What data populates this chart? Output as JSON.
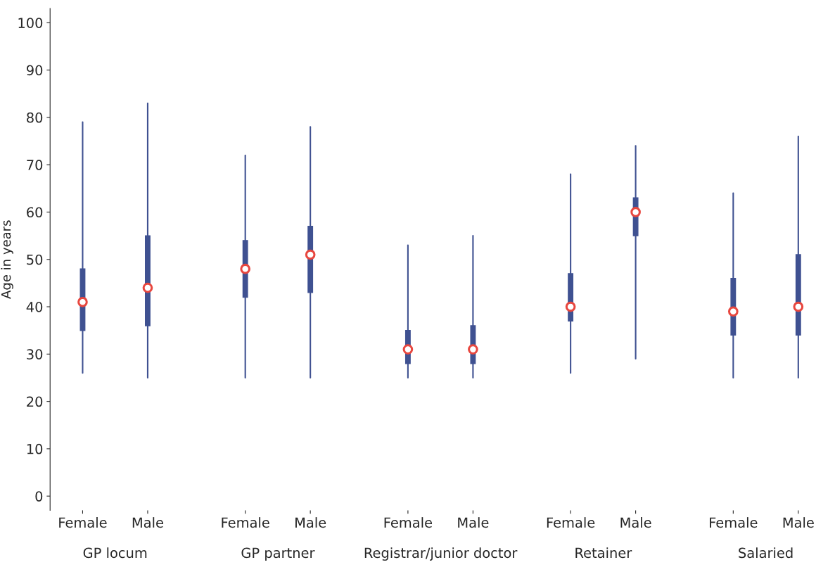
{
  "chart_data": {
    "type": "box",
    "ylabel": "Age in years",
    "categories": [
      "Female",
      "Male",
      "Female",
      "Male",
      "Female",
      "Male",
      "Female",
      "Male",
      "Female",
      "Male"
    ],
    "annotations": [
      "GP locum",
      "GP partner",
      "Registrar/junior doctor",
      "Retainer",
      "Salaried"
    ],
    "color": "#3f5191",
    "boxes": [
      {
        "low": 26,
        "q1": 35,
        "median": 41,
        "q3": 48,
        "high": 79
      },
      {
        "low": 25,
        "q1": 36,
        "median": 44,
        "q3": 55,
        "high": 83
      },
      {
        "low": 25,
        "q1": 42,
        "median": 48,
        "q3": 54,
        "high": 72
      },
      {
        "low": 25,
        "q1": 43,
        "median": 51,
        "q3": 57,
        "high": 78
      },
      {
        "low": 25,
        "q1": 28,
        "median": 31,
        "q3": 35,
        "high": 53
      },
      {
        "low": 25,
        "q1": 28,
        "median": 31,
        "q3": 36,
        "high": 55
      },
      {
        "low": 26,
        "q1": 37,
        "median": 40,
        "q3": 47,
        "high": 68
      },
      {
        "low": 29,
        "q1": 55,
        "median": 60,
        "q3": 63,
        "high": 74
      },
      {
        "low": 25,
        "q1": 34,
        "median": 39,
        "q3": 46,
        "high": 64
      },
      {
        "low": 25,
        "q1": 34,
        "median": 40,
        "q3": 51,
        "high": 76
      }
    ],
    "ylim": [
      -3,
      103
    ],
    "yticks": [
      0,
      10,
      20,
      30,
      40,
      50,
      60,
      70,
      80,
      90,
      100
    ],
    "grid": false,
    "legend": false
  }
}
